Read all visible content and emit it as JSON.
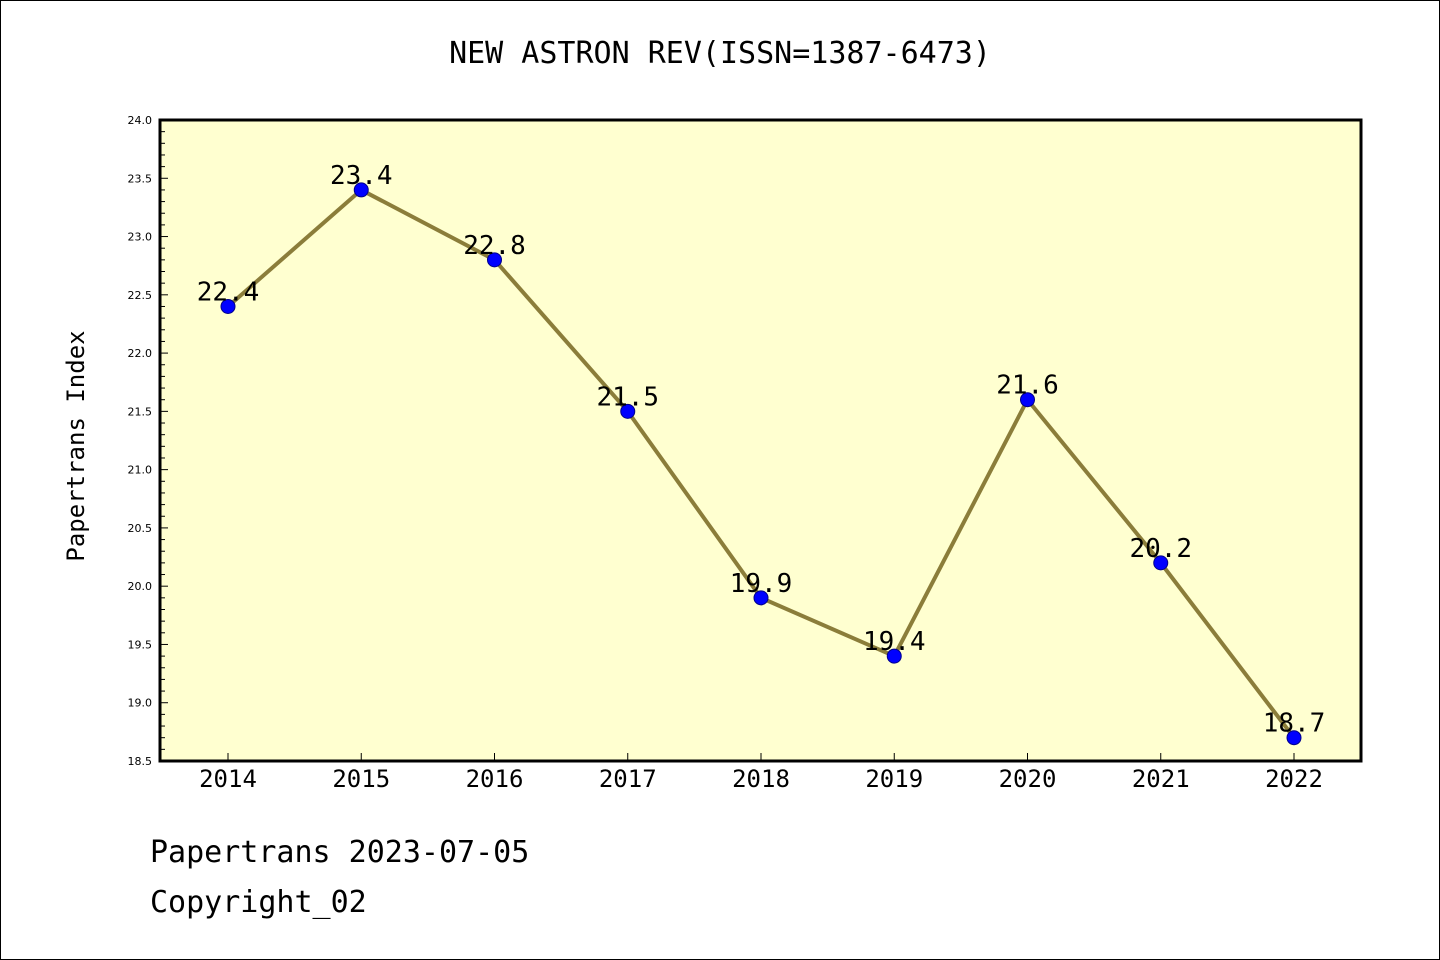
{
  "title": "NEW ASTRON REV(ISSN=1387-6473)",
  "ylabel": "Papertrans Index",
  "footer": {
    "line1": "Papertrans 2023-07-05",
    "line2": "Copyright_02"
  },
  "colors": {
    "plot_background": "#ffffd0",
    "line": "#8b7d3a",
    "marker": "#0000ff"
  },
  "chart_data": {
    "type": "line",
    "title": "NEW ASTRON REV(ISSN=1387-6473)",
    "xlabel": "",
    "ylabel": "Papertrans Index",
    "categories": [
      "2014",
      "2015",
      "2016",
      "2017",
      "2018",
      "2019",
      "2020",
      "2021",
      "2022"
    ],
    "values": [
      22.4,
      23.4,
      22.8,
      21.5,
      19.9,
      19.4,
      21.6,
      20.2,
      18.7
    ],
    "data_labels": [
      "22.4",
      "23.4",
      "22.8",
      "21.5",
      "19.9",
      "19.4",
      "21.6",
      "20.2",
      "18.7"
    ],
    "ylim": [
      18.5,
      24.0
    ],
    "yticks": [
      "18.5",
      "19.0",
      "19.5",
      "20.0",
      "20.5",
      "21.0",
      "21.5",
      "22.0",
      "22.5",
      "23.0",
      "23.5",
      "24.0"
    ],
    "grid": false,
    "legend": "none"
  }
}
